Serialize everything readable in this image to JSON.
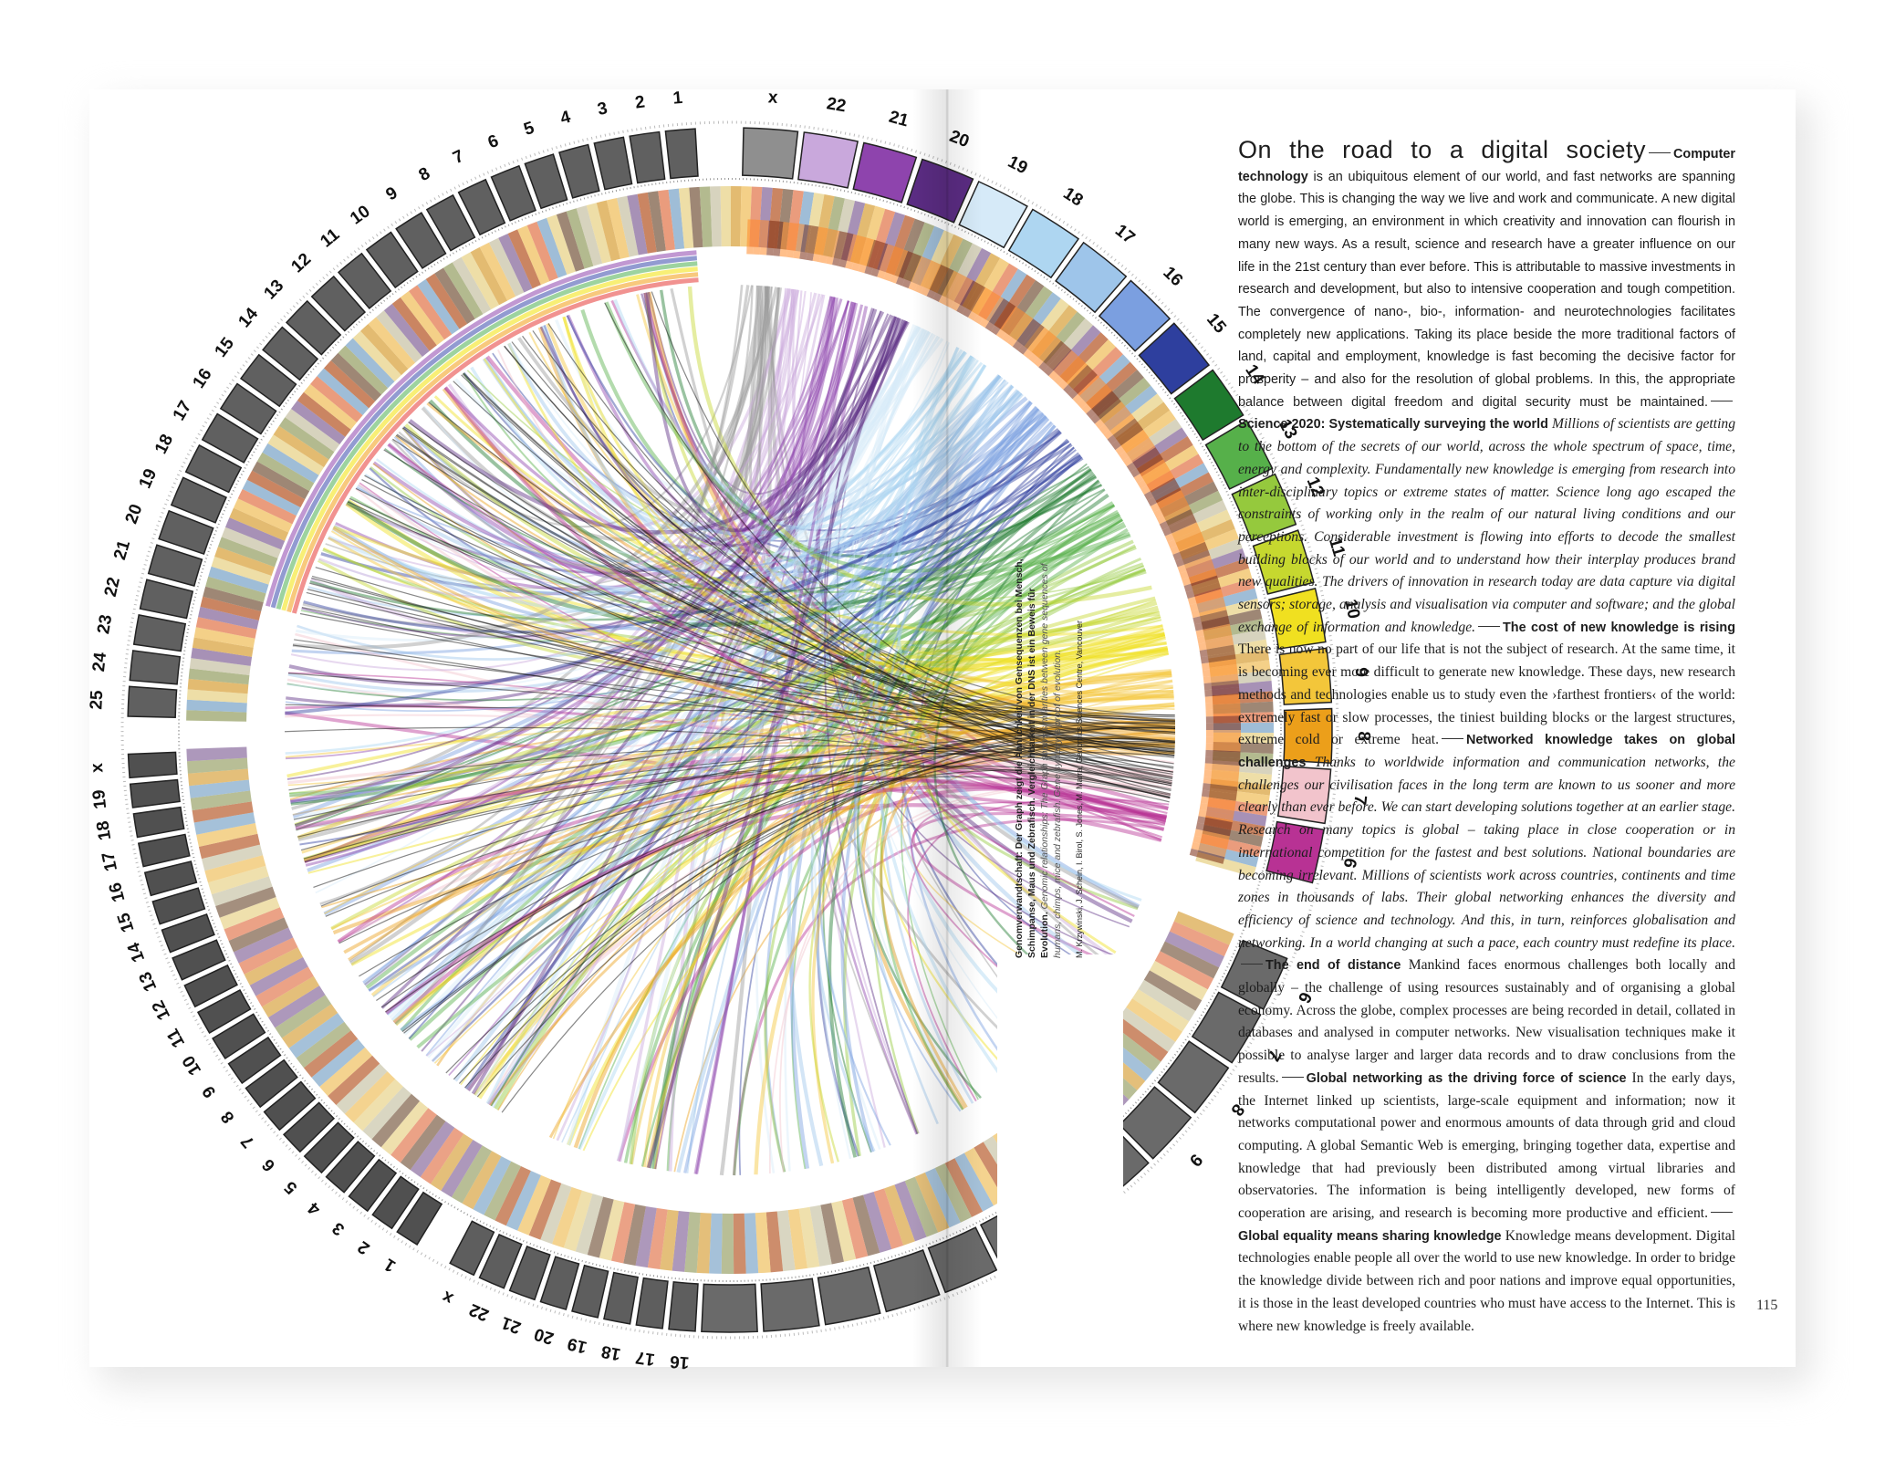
{
  "diagram": {
    "type": "circos-genome-comparison",
    "top_left_labels": [
      "25",
      "24",
      "23",
      "22",
      "21",
      "20",
      "19",
      "18",
      "17",
      "16",
      "15",
      "14",
      "13",
      "12",
      "11",
      "10",
      "9",
      "8",
      "7",
      "6",
      "5",
      "4",
      "3",
      "2",
      "1"
    ],
    "top_center_labels": [
      "x",
      "22",
      "21",
      "20",
      "19",
      "18",
      "17",
      "16",
      "15",
      "14",
      "13",
      "12",
      "11",
      "10",
      "9",
      "8",
      "7",
      "6"
    ],
    "bottom_left_labels": [
      "x",
      "19",
      "18",
      "17",
      "16",
      "15",
      "14",
      "13",
      "12",
      "11",
      "10",
      "9",
      "8",
      "7",
      "6",
      "5",
      "4",
      "3",
      "2",
      "1"
    ],
    "bottom_center_labels": [
      "x",
      "22",
      "21",
      "20",
      "19",
      "18",
      "17",
      "16"
    ],
    "bottom_right_labels": [
      "6",
      "7",
      "8",
      "9"
    ],
    "colors": [
      "#8c8c8c",
      "#c7a3d6",
      "#9b59b6",
      "#6a1b9a",
      "#c9e4f2",
      "#aed6f1",
      "#85c1e9",
      "#6c8ed8",
      "#3949ab",
      "#1b5e20",
      "#4caf50",
      "#8bc34a",
      "#cddc39",
      "#f2e205",
      "#f4c542",
      "#f39c12",
      "#e67e22",
      "#f5c6cb",
      "#c2185b",
      "#e53935",
      "#b71c1c",
      "#8d6e63",
      "#000000"
    ]
  },
  "caption": {
    "bold": "Genomverwandtschaft: Der Graph zeigt die Ähnlichkeit von Gensequenzen bei Mensch, Schimpanse, Maus und Zebrafisch. Vergleichbarkeit in der DNS ist ein Beweis für Evolution.",
    "italic": "Genomic relationships: The Graph shows similarities between gene sequences of humans, chimps, mice and zebrafish. Gene synteny is proof of evolution.",
    "credit": "M. Krzywinski, J. Schein, I. Birol, S. Jones, M. Marra, Genomics Sciences Centre, Vancouver"
  },
  "article": {
    "title": "On the road to a digital society",
    "s1_head": "Computer technology",
    "s1_body": "is an ubiquitous element of our world, and fast networks are spanning the globe. This is changing the way we live and work and communicate. A new digital world is emerging, an environment in which creativity and innovation can flourish in many new ways. As a result, science and research have a greater influence on our life in the 21st century than ever before. This is attributable to massive investments in research and development, but also to intensive cooperation and tough competition. The convergence of nano-, bio-, information- and neurotechnologies facilitates completely new applications. Taking its place beside the more traditional factors of land, capital and employment, knowledge is fast becoming the decisive factor for prosperity – and also for the resolution of global problems. In this, the appropriate balance between digital freedom and digital security must be maintained.",
    "s2_head": "Science 2020: Systematically surveying the world",
    "s2_body": "Millions of scientists are getting to the bottom of the secrets of our world, across the whole spectrum of space, time, energy and complexity. Fundamentally new knowledge is emerging from research into inter-disciplinary topics or extreme states of matter. Science long ago escaped the constraints of working only in the realm of our natural living conditions and our perceptions. Considerable investment is flowing into efforts to decode the smallest building blocks of our world and to understand how their interplay produces brand new qualities. The drivers of innovation in research today are data capture via digital sensors; storage, analysis and visualisation via computer and software; and the global exchange of information and knowledge.",
    "s3_head": "The cost of new knowledge is rising",
    "s3_body": "There is now no part of our life that is not the subject of research. At the same time, it is becoming ever more difficult to generate new knowledge. These days, new research methods and technologies enable us to study even the ›farthest frontiers‹ of the world: extremely fast or slow processes, the tiniest building blocks or the largest structures, extreme cold or extreme heat.",
    "s4_head": "Networked knowledge takes on global challenges",
    "s4_body": "Thanks to worldwide information and communication networks, the challenges our civilisation faces in the long term are known to us sooner and more clearly than ever before. We can start developing solutions together at an earlier stage. Research on many topics is global – taking place in close cooperation or in international competition for the fastest and best solutions. National boundaries are becoming irrelevant. Millions of scientists work across countries, continents and time zones in thousands of labs. Their global networking enhances the diversity and efficiency of science and technology. And this, in turn, reinforces globalisation and networking. In a world changing at such a pace, each country must redefine its place.",
    "s5_head": "The end of distance",
    "s5_body": "Mankind faces enormous challenges both locally and globally – the challenge of using resources sustainably and of organising a global economy. Across the globe, complex processes are being recorded in detail, collated in databases and analysed in computer networks. New visualisation techniques make it possible to analyse larger and larger data records and to draw conclusions from the results.",
    "s6_head": "Global networking as the driving force of science",
    "s6_body": "In the early days, the Internet linked up scientists, large-scale equipment and information; now it networks computational power and enormous amounts of data through grid and cloud computing. A global Semantic Web is emerging, bringing together data, expertise and knowledge that had previously been distributed among virtual libraries and observatories. The information is being intelligently developed, new forms of cooperation are arising, and research is becoming more productive and efficient.",
    "s7_head": "Global equality means sharing knowledge",
    "s7_body": "Knowledge means development. Digital technologies enable people all over the world to use new knowledge. In order to bridge the knowledge divide between rich and poor nations and improve equal opportunities, it is those in the least developed countries who must have access to the Internet. This is where new knowledge is freely available.",
    "page_number": "115"
  }
}
